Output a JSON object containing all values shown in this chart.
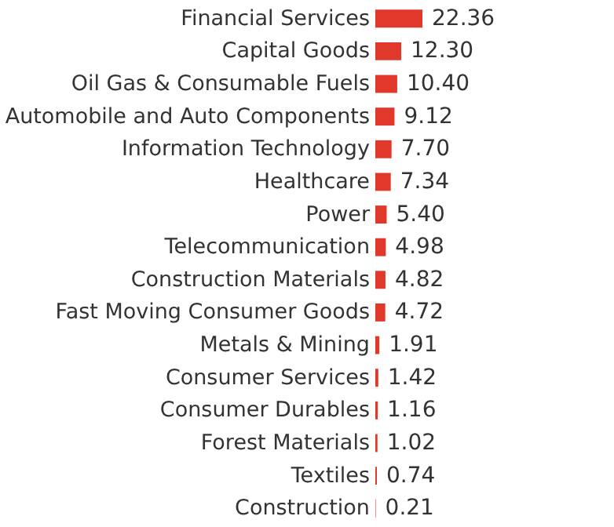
{
  "chart_data": {
    "type": "bar",
    "orientation": "horizontal",
    "data_labels": true,
    "tick_labels": "y",
    "categories": [
      "Financial Services",
      "Capital Goods",
      "Oil Gas & Consumable Fuels",
      "Automobile and Auto Components",
      "Information Technology",
      "Healthcare",
      "Power",
      "Telecommunication",
      "Construction Materials",
      "Fast Moving Consumer Goods",
      "Metals & Mining",
      "Consumer Services",
      "Consumer Durables",
      "Forest Materials",
      "Textiles",
      "Construction"
    ],
    "values": [
      22.36,
      12.3,
      10.4,
      9.12,
      7.7,
      7.34,
      5.4,
      4.98,
      4.82,
      4.72,
      1.91,
      1.42,
      1.16,
      1.02,
      0.74,
      0.21
    ],
    "value_labels": [
      "22.36",
      "12.30",
      "10.40",
      "9.12",
      "7.70",
      "7.34",
      "5.40",
      "4.98",
      "4.82",
      "4.72",
      "1.91",
      "1.42",
      "1.16",
      "1.02",
      "0.74",
      "0.21"
    ],
    "color": "#e0392b"
  }
}
